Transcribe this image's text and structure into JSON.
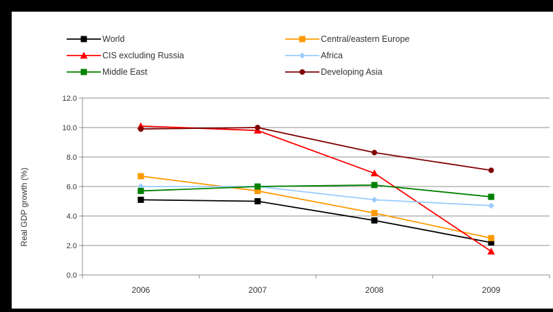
{
  "chart_data": {
    "type": "line",
    "title": "",
    "xlabel": "",
    "ylabel": "Real GDP growth (%)",
    "ylim": [
      0,
      12
    ],
    "yticks": [
      "0.0",
      "2.0",
      "4.0",
      "6.0",
      "8.0",
      "10.0",
      "12.0"
    ],
    "categories": [
      "2006",
      "2007",
      "2008",
      "2009"
    ],
    "grid": true,
    "legend_position": "top",
    "series": [
      {
        "name": "World",
        "color": "#000000",
        "marker": "square",
        "values": [
          5.1,
          5.0,
          3.7,
          2.2
        ]
      },
      {
        "name": "Central/eastern Europe",
        "color": "#ff9900",
        "marker": "square",
        "values": [
          6.7,
          5.7,
          4.2,
          2.5
        ]
      },
      {
        "name": "CIS excluding Russia",
        "color": "#ff0000",
        "marker": "triangle",
        "values": [
          10.1,
          9.8,
          6.9,
          1.6
        ]
      },
      {
        "name": "Africa",
        "color": "#99ccff",
        "marker": "diamond",
        "values": [
          6.0,
          6.0,
          5.1,
          4.7
        ]
      },
      {
        "name": "Middle East",
        "color": "#008000",
        "marker": "square",
        "values": [
          5.7,
          6.0,
          6.1,
          5.3
        ]
      },
      {
        "name": "Developing Asia",
        "color": "#800000",
        "marker": "circle",
        "values": [
          9.9,
          10.0,
          8.3,
          7.1
        ]
      }
    ]
  }
}
